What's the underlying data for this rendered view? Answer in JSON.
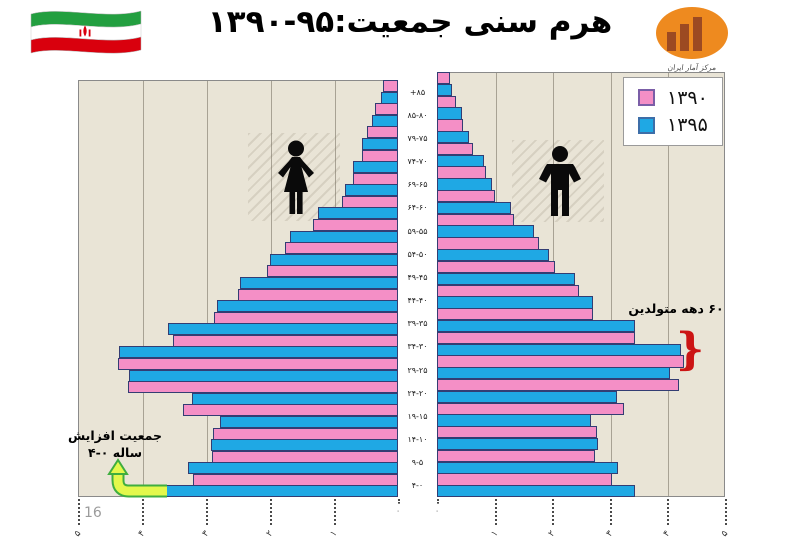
{
  "page": {
    "page_number": "16",
    "background": "#ffffff"
  },
  "header": {
    "title": "هرم سنی جمعیت:۹۵-۱۳۹۰",
    "flag": "iran-flag",
    "logo": {
      "caption": "مرکز آمار ایران",
      "ellipse_color": "#ee8a1f",
      "bars_color": "#9c4a22"
    }
  },
  "legend": {
    "items": [
      {
        "label": "۱۳۹۰",
        "color": "#f48fc6"
      },
      {
        "label": "۱۳۹۵",
        "color": "#1fa8e4"
      }
    ]
  },
  "annotations": {
    "sixties": {
      "text": "۶۰ دهه متولدین",
      "brace": "}",
      "brace_color": "#cc1414"
    },
    "pop_increase": {
      "line1": "جمعیت افزایش",
      "line2": "ساله ۰-۴"
    }
  },
  "chart_data": {
    "type": "bar",
    "subtype": "population_pyramid",
    "title": "هرم سنی جمعیت:۹۵-۱۳۹۰",
    "grid": true,
    "legend_position": "top-right",
    "unit_scale_millions": true,
    "xlim": [
      0,
      5
    ],
    "age_groups": [
      "+۸۵",
      "۸۵-۸۰",
      "۷۹-۷۵",
      "۷۴-۷۰",
      "۶۹-۶۵",
      "۶۴-۶۰",
      "۵۹-۵۵",
      "۵۴-۵۰",
      "۴۹-۴۵",
      "۴۴-۴۰",
      "۳۹-۳۵",
      "۳۴-۳۰",
      "۲۹-۲۵",
      "۲۴-۲۰",
      "۱۹-۱۵",
      "۱۴-۱۰",
      "۹-۵",
      "۴-۰"
    ],
    "female": {
      "side": "left",
      "series": [
        {
          "name": "۱۳۹۰",
          "color": "#f48fc6",
          "values": [
            0.23,
            0.36,
            0.49,
            0.56,
            0.7,
            0.88,
            1.33,
            1.77,
            2.05,
            2.5,
            2.88,
            3.52,
            4.38,
            4.22,
            3.36,
            2.89,
            2.91,
            3.2
          ]
        },
        {
          "name": "۱۳۹۵",
          "color": "#1fa8e4",
          "values": [
            0.27,
            0.41,
            0.56,
            0.7,
            0.83,
            1.25,
            1.69,
            2.0,
            2.47,
            2.83,
            3.59,
            4.36,
            4.2,
            3.22,
            2.78,
            2.92,
            3.28,
            3.67
          ]
        }
      ]
    },
    "male": {
      "side": "right",
      "series": [
        {
          "name": "۱۳۹۰",
          "color": "#f48fc6",
          "values": [
            0.23,
            0.33,
            0.46,
            0.63,
            0.85,
            1.0,
            1.33,
            1.77,
            2.04,
            2.46,
            2.7,
            3.44,
            4.29,
            4.2,
            3.24,
            2.77,
            2.74,
            3.04
          ]
        },
        {
          "name": "۱۳۹۵",
          "color": "#1fa8e4",
          "values": [
            0.26,
            0.44,
            0.56,
            0.81,
            0.95,
            1.28,
            1.68,
            1.95,
            2.39,
            2.71,
            3.44,
            4.23,
            4.04,
            3.12,
            2.68,
            2.79,
            3.14,
            3.44
          ]
        }
      ]
    },
    "x_axis": {
      "ticks_left": [
        "۵",
        "۴",
        "۳",
        "۲",
        "۱",
        "۰"
      ],
      "ticks_right": [
        "۰",
        "۱",
        "۲",
        "۳",
        "۴",
        "۵"
      ]
    }
  }
}
